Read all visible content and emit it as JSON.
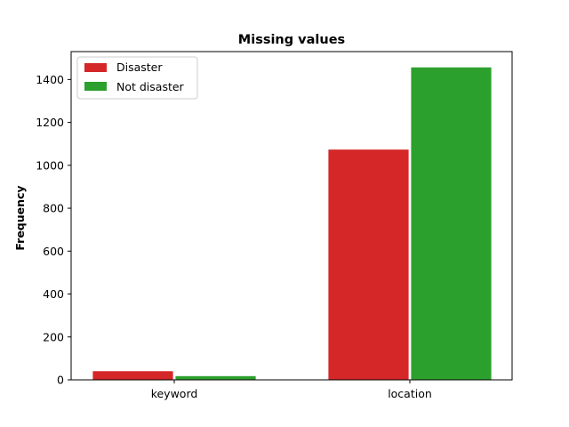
{
  "chart_data": {
    "type": "bar",
    "title": "Missing values",
    "xlabel": "",
    "ylabel": "Frequency",
    "categories": [
      "keyword",
      "location"
    ],
    "series": [
      {
        "name": "Disaster",
        "values": [
          42,
          1075
        ],
        "color": "#d62728"
      },
      {
        "name": "Not disaster",
        "values": [
          19,
          1458
        ],
        "color": "#2ca02c"
      }
    ],
    "ylim": [
      0,
      1530
    ],
    "yticks": [
      0,
      200,
      400,
      600,
      800,
      1000,
      1200,
      1400
    ],
    "legend": "top-left",
    "grid": false
  }
}
